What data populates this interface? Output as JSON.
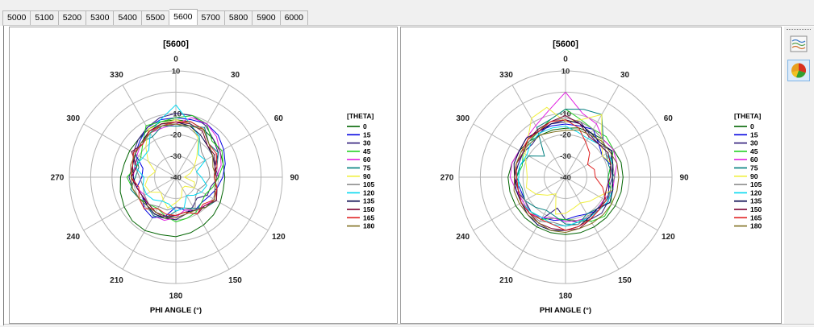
{
  "tabs": [
    "5000",
    "5100",
    "5200",
    "5300",
    "5400",
    "5500",
    "5600",
    "5700",
    "5800",
    "5900",
    "6000"
  ],
  "active_tab": "5600",
  "toolbar": {
    "line_chart_icon": "line-chart-icon",
    "pie_chart_icon": "pie-chart-icon"
  },
  "chart_data": [
    {
      "type": "polar-line",
      "title": "[5600]",
      "xlabel": "PHI ANGLE (°)",
      "angle_labels": [
        "0",
        "30",
        "60",
        "90",
        "120",
        "150",
        "180",
        "210",
        "240",
        "270",
        "300",
        "330"
      ],
      "radial_labels": [
        "10",
        "-10",
        "-20",
        "-30",
        "-40"
      ],
      "r_range": [
        -40,
        10
      ],
      "legend_title": "[THETA]",
      "phi": [
        0,
        15,
        30,
        45,
        60,
        75,
        90,
        105,
        120,
        135,
        150,
        165,
        180,
        195,
        210,
        225,
        240,
        255,
        270,
        285,
        300,
        315,
        330,
        345
      ],
      "series": [
        {
          "name": "0",
          "color": "#006400",
          "values": [
            -13,
            -13,
            -14,
            -15,
            -16,
            -17,
            -17,
            -17,
            -16,
            -15,
            -14,
            -13,
            -12,
            -12,
            -11,
            -11,
            -12,
            -13,
            -14,
            -15,
            -15,
            -15,
            -14,
            -13
          ]
        },
        {
          "name": "15",
          "color": "#0000e0",
          "values": [
            -12,
            -12,
            -11,
            -12,
            -14,
            -16,
            -18,
            -20,
            -22,
            -23,
            -22,
            -24,
            -26,
            -21,
            -18,
            -19,
            -22,
            -21,
            -24,
            -24,
            -18,
            -16,
            -13,
            -12
          ]
        },
        {
          "name": "30",
          "color": "#2e1a7a",
          "values": [
            -10,
            -10,
            -12,
            -15,
            -17,
            -21,
            -20,
            -23,
            -23,
            -26,
            -24,
            -22,
            -20,
            -20,
            -21,
            -22,
            -20,
            -19,
            -18,
            -19,
            -17,
            -15,
            -13,
            -11
          ]
        },
        {
          "name": "45",
          "color": "#22d022",
          "values": [
            -12,
            -10,
            -11,
            -16,
            -15,
            -17,
            -20,
            -22,
            -24,
            -23,
            -21,
            -20,
            -19,
            -21,
            -23,
            -22,
            -20,
            -19,
            -17,
            -21,
            -21,
            -18,
            -12,
            -13
          ]
        },
        {
          "name": "60",
          "color": "#e020e0",
          "values": [
            -15,
            -11,
            -11,
            -13,
            -16,
            -18,
            -21,
            -21,
            -19,
            -21,
            -22,
            -24,
            -21,
            -19,
            -19,
            -21,
            -23,
            -21,
            -20,
            -20,
            -19,
            -17,
            -16,
            -16
          ]
        },
        {
          "name": "75",
          "color": "#007f7f",
          "values": [
            -16,
            -15,
            -13,
            -18,
            -17,
            -20,
            -22,
            -20,
            -18,
            -20,
            -23,
            -25,
            -24,
            -20,
            -19,
            -21,
            -20,
            -18,
            -21,
            -22,
            -18,
            -17,
            -18,
            -15
          ]
        },
        {
          "name": "90",
          "color": "#f0f040",
          "values": [
            -13,
            -14,
            -19,
            -26,
            -30,
            -33,
            -36,
            -31,
            -30,
            -34,
            -34,
            -30,
            -28,
            -25,
            -28,
            -30,
            -26,
            -25,
            -27,
            -30,
            -25,
            -20,
            -14,
            -14
          ]
        },
        {
          "name": "105",
          "color": "#8a8a8a",
          "values": [
            -15,
            -16,
            -18,
            -23,
            -24,
            -24,
            -24,
            -26,
            -28,
            -27,
            -22,
            -25,
            -26,
            -24,
            -24,
            -22,
            -23,
            -24,
            -23,
            -20,
            -17,
            -18,
            -16,
            -14
          ]
        },
        {
          "name": "120",
          "color": "#00d8f0",
          "values": [
            -6,
            -14,
            -18,
            -25,
            -24,
            -30,
            -28,
            -25,
            -26,
            -28,
            -30,
            -25,
            -24,
            -27,
            -27,
            -25,
            -24,
            -24,
            -25,
            -20,
            -22,
            -22,
            -16,
            -12
          ]
        },
        {
          "name": "135",
          "color": "#00004a",
          "values": [
            -14,
            -15,
            -17,
            -19,
            -20,
            -21,
            -21,
            -21,
            -19,
            -20,
            -22,
            -23,
            -22,
            -20,
            -20,
            -21,
            -22,
            -21,
            -20,
            -19,
            -18,
            -17,
            -15,
            -14
          ]
        },
        {
          "name": "150",
          "color": "#7a0030",
          "values": [
            -14,
            -14,
            -15,
            -19,
            -19,
            -21,
            -22,
            -20,
            -18,
            -21,
            -20,
            -23,
            -22,
            -21,
            -21,
            -22,
            -22,
            -21,
            -19,
            -21,
            -16,
            -18,
            -15,
            -14
          ]
        },
        {
          "name": "165",
          "color": "#e02020",
          "values": [
            -14,
            -13,
            -14,
            -18,
            -18,
            -20,
            -22,
            -20,
            -19,
            -22,
            -20,
            -23,
            -22,
            -22,
            -23,
            -19,
            -20,
            -22,
            -19,
            -19,
            -17,
            -18,
            -15,
            -15
          ]
        },
        {
          "name": "180",
          "color": "#807020",
          "values": [
            -15,
            -15,
            -14,
            -18,
            -20,
            -22,
            -21,
            -21,
            -19,
            -20,
            -22,
            -22,
            -21,
            -20,
            -21,
            -21,
            -20,
            -19,
            -19,
            -18,
            -18,
            -17,
            -16,
            -15
          ]
        }
      ]
    },
    {
      "type": "polar-line",
      "title": "[5600]",
      "xlabel": "PHI ANGLE (°)",
      "angle_labels": [
        "0",
        "30",
        "60",
        "90",
        "120",
        "150",
        "180",
        "210",
        "240",
        "270",
        "300",
        "330"
      ],
      "radial_labels": [
        "10",
        "-10",
        "-20",
        "-30",
        "-40"
      ],
      "r_range": [
        -40,
        10
      ],
      "legend_title": "[THETA]",
      "phi": [
        0,
        15,
        30,
        45,
        60,
        75,
        90,
        105,
        120,
        135,
        150,
        165,
        180,
        195,
        210,
        225,
        240,
        255,
        270,
        285,
        300,
        315,
        330,
        345
      ],
      "series": [
        {
          "name": "0",
          "color": "#006400",
          "values": [
            -17,
            -16,
            -16,
            -15,
            -14,
            -13,
            -13,
            -13,
            -13,
            -13,
            -13,
            -13,
            -13,
            -13,
            -13,
            -13,
            -13,
            -13,
            -13,
            -14,
            -15,
            -16,
            -17,
            -17
          ]
        },
        {
          "name": "15",
          "color": "#0000e0",
          "values": [
            -15,
            -15,
            -14,
            -18,
            -20,
            -18,
            -20,
            -19,
            -17,
            -18,
            -20,
            -21,
            -20,
            -19,
            -18,
            -17,
            -18,
            -18,
            -16,
            -17,
            -17,
            -16,
            -15,
            -15
          ]
        },
        {
          "name": "30",
          "color": "#2e1a7a",
          "values": [
            -14,
            -13,
            -17,
            -18,
            -15,
            -18,
            -18,
            -19,
            -17,
            -16,
            -17,
            -18,
            -20,
            -25,
            -17,
            -17,
            -18,
            -16,
            -16,
            -17,
            -17,
            -18,
            -16,
            -14
          ]
        },
        {
          "name": "45",
          "color": "#22d022",
          "values": [
            -8,
            -12,
            -14,
            -13,
            -14,
            -18,
            -20,
            -18,
            -15,
            -14,
            -16,
            -19,
            -20,
            -20,
            -17,
            -17,
            -16,
            -17,
            -17,
            -19,
            -17,
            -16,
            -15,
            -12
          ]
        },
        {
          "name": "60",
          "color": "#e020e0",
          "values": [
            0,
            -9,
            -11,
            -15,
            -14,
            -15,
            -17,
            -17,
            -19,
            -19,
            -18,
            -19,
            -19,
            -20,
            -18,
            -16,
            -17,
            -16,
            -14,
            -14,
            -15,
            -14,
            -12,
            -8
          ]
        },
        {
          "name": "75",
          "color": "#007f7f",
          "values": [
            -8,
            -7,
            -6,
            -15,
            -18,
            -19,
            -17,
            -18,
            -18,
            -19,
            -20,
            -17,
            -18,
            -21,
            -22,
            -20,
            -18,
            -19,
            -17,
            -18,
            -20,
            -26,
            -13,
            -12
          ]
        },
        {
          "name": "90",
          "color": "#f0f040",
          "values": [
            -14,
            -12,
            -6,
            -16,
            -20,
            -17,
            -18,
            -17,
            -22,
            -24,
            -26,
            -25,
            -23,
            -22,
            -31,
            -28,
            -24,
            -21,
            -22,
            -21,
            -18,
            -15,
            -8,
            -6
          ]
        },
        {
          "name": "105",
          "color": "#8a8a8a",
          "values": [
            -12,
            -13,
            -14,
            -15,
            -18,
            -17,
            -17,
            -18,
            -17,
            -18,
            -19,
            -17,
            -17,
            -18,
            -16,
            -16,
            -18,
            -17,
            -17,
            -16,
            -17,
            -16,
            -14,
            -13
          ]
        },
        {
          "name": "120",
          "color": "#00d8f0",
          "values": [
            -16,
            -18,
            -19,
            -18,
            -17,
            -17,
            -18,
            -17,
            -17,
            -18,
            -18,
            -18,
            -17,
            -17,
            -18,
            -17,
            -16,
            -17,
            -18,
            -18,
            -19,
            -17,
            -16,
            -16
          ]
        },
        {
          "name": "135",
          "color": "#00004a",
          "values": [
            -13,
            -14,
            -16,
            -17,
            -15,
            -17,
            -18,
            -17,
            -16,
            -19,
            -18,
            -16,
            -15,
            -14,
            -14,
            -15,
            -16,
            -16,
            -16,
            -15,
            -15,
            -14,
            -15,
            -14
          ]
        },
        {
          "name": "150",
          "color": "#7a0030",
          "values": [
            -11,
            -14,
            -18,
            -18,
            -17,
            -18,
            -19,
            -20,
            -19,
            -18,
            -17,
            -15,
            -15,
            -15,
            -15,
            -16,
            -16,
            -17,
            -16,
            -16,
            -17,
            -15,
            -14,
            -13
          ]
        },
        {
          "name": "165",
          "color": "#e02020",
          "values": [
            -13,
            -16,
            -21,
            -24,
            -28,
            -26,
            -26,
            -22,
            -18,
            -18,
            -17,
            -16,
            -15,
            -17,
            -17,
            -16,
            -16,
            -17,
            -17,
            -16,
            -16,
            -15,
            -15,
            -13
          ]
        },
        {
          "name": "180",
          "color": "#807020",
          "values": [
            -18,
            -17,
            -17,
            -16,
            -16,
            -15,
            -15,
            -15,
            -15,
            -15,
            -15,
            -15,
            -14,
            -14,
            -15,
            -15,
            -15,
            -15,
            -16,
            -16,
            -16,
            -17,
            -17,
            -18
          ]
        }
      ]
    }
  ]
}
